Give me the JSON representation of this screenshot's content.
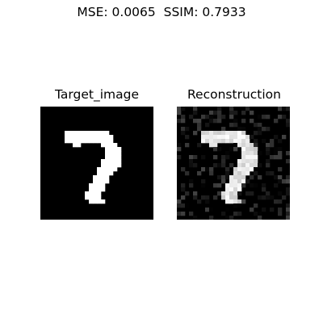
{
  "figure": {
    "suptitle": "MSE: 0.0065  SSIM: 0.7933",
    "target_title": "Target_image",
    "reconstruction_title": "Reconstruction"
  },
  "images": {
    "target": {
      "description_id": "digit-7",
      "grid_size": 28,
      "pixels_white": [
        [
          6,
          10
        ],
        [
          7,
          10
        ],
        [
          8,
          10
        ],
        [
          9,
          10
        ],
        [
          10,
          10
        ],
        [
          11,
          10
        ],
        [
          12,
          10
        ],
        [
          13,
          10
        ],
        [
          14,
          10
        ],
        [
          15,
          10
        ],
        [
          16,
          10
        ],
        [
          6,
          11
        ],
        [
          7,
          11
        ],
        [
          8,
          11
        ],
        [
          9,
          11
        ],
        [
          10,
          11
        ],
        [
          11,
          11
        ],
        [
          12,
          11
        ],
        [
          13,
          11
        ],
        [
          14,
          11
        ],
        [
          15,
          11
        ],
        [
          16,
          11
        ],
        [
          17,
          11
        ],
        [
          6,
          12
        ],
        [
          7,
          12
        ],
        [
          8,
          12
        ],
        [
          9,
          12
        ],
        [
          10,
          12
        ],
        [
          11,
          12
        ],
        [
          12,
          12
        ],
        [
          13,
          12
        ],
        [
          14,
          12
        ],
        [
          15,
          12
        ],
        [
          16,
          12
        ],
        [
          17,
          12
        ],
        [
          8,
          13
        ],
        [
          9,
          13
        ],
        [
          15,
          13
        ],
        [
          16,
          13
        ],
        [
          17,
          13
        ],
        [
          18,
          13
        ],
        [
          16,
          14
        ],
        [
          17,
          14
        ],
        [
          18,
          14
        ],
        [
          19,
          14
        ],
        [
          16,
          15
        ],
        [
          17,
          15
        ],
        [
          18,
          15
        ],
        [
          19,
          15
        ],
        [
          16,
          16
        ],
        [
          17,
          16
        ],
        [
          18,
          16
        ],
        [
          19,
          16
        ],
        [
          15,
          17
        ],
        [
          16,
          17
        ],
        [
          17,
          17
        ],
        [
          18,
          17
        ],
        [
          19,
          17
        ],
        [
          15,
          18
        ],
        [
          16,
          18
        ],
        [
          17,
          18
        ],
        [
          18,
          18
        ],
        [
          19,
          18
        ],
        [
          14,
          19
        ],
        [
          15,
          19
        ],
        [
          16,
          19
        ],
        [
          17,
          19
        ],
        [
          18,
          19
        ],
        [
          14,
          20
        ],
        [
          15,
          20
        ],
        [
          16,
          20
        ],
        [
          17,
          20
        ],
        [
          13,
          21
        ],
        [
          14,
          21
        ],
        [
          15,
          21
        ],
        [
          16,
          21
        ],
        [
          13,
          22
        ],
        [
          14,
          22
        ],
        [
          15,
          22
        ],
        [
          16,
          22
        ],
        [
          12,
          23
        ],
        [
          13,
          23
        ],
        [
          14,
          23
        ],
        [
          15,
          23
        ],
        [
          12,
          24
        ],
        [
          13,
          24
        ],
        [
          14,
          24
        ],
        [
          15,
          24
        ],
        [
          11,
          25
        ],
        [
          12,
          25
        ],
        [
          13,
          25
        ],
        [
          14,
          25
        ],
        [
          11,
          26
        ],
        [
          12,
          26
        ],
        [
          13,
          26
        ],
        [
          14,
          26
        ],
        [
          12,
          27
        ],
        [
          13,
          27
        ],
        [
          14,
          27
        ],
        [
          15,
          27
        ]
      ]
    },
    "reconstruction": {
      "description_id": "digit-7-noisy"
    }
  }
}
